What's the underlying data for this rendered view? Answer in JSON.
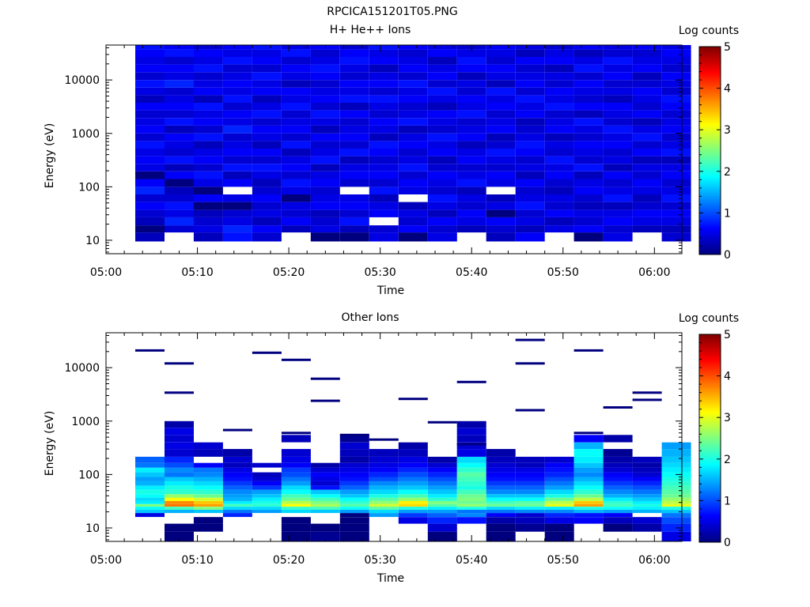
{
  "figure_title": "RPCICA151201T05.PNG",
  "colormap": [
    "#00007f",
    "#0000ff",
    "#007fff",
    "#00ffff",
    "#7fff7f",
    "#ffff00",
    "#ff7f00",
    "#ff0000",
    "#7f0000"
  ],
  "chart_data": [
    {
      "type": "heatmap",
      "title": "H+ He++ Ions",
      "xlabel": "Time",
      "ylabel": "Energy (eV)",
      "x_ticks": [
        "05:00",
        "05:10",
        "05:20",
        "05:30",
        "05:40",
        "05:50",
        "06:00"
      ],
      "x_range_minutes": [
        0,
        63
      ],
      "y_ticks": [
        "10",
        "100",
        "1000",
        "10000"
      ],
      "y_scale": "log",
      "y_range": [
        5.6,
        45000
      ],
      "colorbar": {
        "label": "Log counts",
        "ticks": [
          "0",
          "1",
          "2",
          "3",
          "4",
          "5"
        ],
        "range": [
          0,
          5
        ]
      },
      "time_bins_minutes": [
        3.2,
        6.4,
        9.6,
        12.8,
        16.0,
        19.2,
        22.4,
        25.6,
        28.8,
        32.0,
        35.2,
        38.4,
        41.6,
        44.8,
        48.0,
        51.2,
        54.4,
        57.6,
        60.8
      ],
      "energy_edges_eV": [
        9.5,
        14,
        19,
        27,
        37,
        52,
        72,
        100,
        140,
        195,
        270,
        375,
        520,
        720,
        1000,
        1400,
        1950,
        2700,
        3750,
        5200,
        7200,
        10000,
        14000,
        19500,
        27000,
        37500,
        45000
      ],
      "log_counts": [
        [
          0.3,
          0,
          0.3,
          0.4,
          0.6,
          0.4,
          0.8,
          0.6,
          0,
          0.5,
          0.6,
          0.5,
          0.7,
          0.4,
          0.6,
          0.5,
          0.4,
          0.6,
          0.3,
          0.5,
          0.7,
          0.4,
          0.6,
          0.5,
          0.6,
          0.7
        ],
        [
          null,
          0.4,
          0.8,
          0.5,
          0.7,
          0.4,
          0.3,
          0,
          0.6,
          0.3,
          0.7,
          0.4,
          0.5,
          0.6,
          0.3,
          0.7,
          0.4,
          0.6,
          0.5,
          0.4,
          0.8,
          0.5,
          0.6,
          0.4,
          0.7,
          0.6
        ],
        [
          0.3,
          0.5,
          0.4,
          0.3,
          0,
          0.6,
          0,
          0.5,
          0.7,
          0.4,
          0.6,
          0.5,
          0.3,
          0.7,
          0.4,
          0.6,
          0.5,
          0.7,
          0.3,
          0.6,
          0.5,
          0.4,
          0.7,
          0.5,
          0.6,
          0.4
        ],
        [
          0.7,
          0.8,
          0.5,
          0.4,
          0,
          0.5,
          null,
          0.6,
          0.3,
          0.7,
          0.4,
          0.6,
          0.5,
          0.4,
          0.8,
          0.5,
          0.6,
          0.4,
          0.7,
          0.5,
          0.6,
          0.5,
          0.4,
          0.7,
          0.5,
          0.6
        ],
        [
          0.4,
          0.6,
          0.3,
          0.5,
          0.4,
          0.6,
          0.4,
          0.3,
          0.5,
          0.7,
          0.4,
          0.6,
          0.3,
          0.5,
          0.6,
          0.4,
          0.7,
          0.5,
          0.3,
          0.6,
          0.5,
          0.7,
          0.4,
          0.6,
          0.5,
          0.7
        ],
        [
          null,
          0.3,
          0.6,
          0.4,
          0.5,
          0,
          0.5,
          0.7,
          0.4,
          0.6,
          0.5,
          0.3,
          0.7,
          0.4,
          0.6,
          0.5,
          0.4,
          0.7,
          0.5,
          0.6,
          0.3,
          0.5,
          0.6,
          0.4,
          0.7,
          0.5
        ],
        [
          0,
          0.5,
          0.4,
          0.3,
          0.6,
          0.5,
          0.4,
          0.6,
          0.5,
          0.3,
          0.7,
          0.5,
          0.4,
          0.6,
          0.3,
          0.5,
          0.7,
          0.4,
          0.6,
          0.5,
          0.4,
          0.6,
          0.7,
          0.5,
          0.4,
          0.6
        ],
        [
          0,
          0.3,
          0.7,
          0.4,
          0.6,
          0.5,
          null,
          0.4,
          0.6,
          0.5,
          0.3,
          0.7,
          0.4,
          0.6,
          0.5,
          0.4,
          0.6,
          0.3,
          0.7,
          0.5,
          0.6,
          0.4,
          0.5,
          0.7,
          0.6,
          0.4
        ],
        [
          0.5,
          0.4,
          null,
          0.6,
          0.5,
          0.3,
          0.7,
          0.4,
          0.6,
          0.5,
          0.4,
          0.6,
          0.7,
          0.3,
          0.5,
          0.6,
          0.4,
          0.5,
          0.7,
          0.4,
          0.6,
          0.5,
          0.3,
          0.6,
          0.5,
          0.7
        ],
        [
          0,
          0.6,
          0.4,
          0.5,
          0.3,
          null,
          0.5,
          0.6,
          0.4,
          0.7,
          0.5,
          0.4,
          0.6,
          0.5,
          0.3,
          0.7,
          0.5,
          0.4,
          0.6,
          0.5,
          0.7,
          0.4,
          0.6,
          0.5,
          0.4,
          0.6
        ],
        [
          0.5,
          0.4,
          0.6,
          0.3,
          0.5,
          0.7,
          0.4,
          0.5,
          0.6,
          0.4,
          0.3,
          0.6,
          0.5,
          0.7,
          0.4,
          0.5,
          0.6,
          0.3,
          0.5,
          0.7,
          0.4,
          0.6,
          0.5,
          0.3,
          0.6,
          0.5
        ],
        [
          null,
          0.3,
          0.5,
          0.6,
          0.4,
          0.5,
          0.3,
          0.7,
          0.5,
          0.4,
          0.6,
          0.5,
          0.3,
          0.6,
          0.5,
          0.4,
          0.7,
          0.5,
          0.6,
          0.4,
          0.5,
          0.3,
          0.6,
          0.7,
          0.5,
          0.4
        ],
        [
          0.3,
          0.4,
          0.6,
          0,
          0.5,
          0.3,
          null,
          0.5,
          0.6,
          0.4,
          0.5,
          0.7,
          0.4,
          0.3,
          0.6,
          0.5,
          0.4,
          0.6,
          0.5,
          0.7,
          0.3,
          0.5,
          0.6,
          0.4,
          0.5,
          0.6
        ],
        [
          0.6,
          0.3,
          0.5,
          0.4,
          0.7,
          0.5,
          0.4,
          0.6,
          0.3,
          0.5,
          0.4,
          0.6,
          0.7,
          0.5,
          0.4,
          0.3,
          0.6,
          0.5,
          0.7,
          0.4,
          0.6,
          0.5,
          0.4,
          0.6,
          0.3,
          0.5
        ],
        [
          null,
          0.5,
          0.3,
          0.6,
          0.4,
          0.5,
          0.3,
          0.4,
          0.6,
          0.5,
          0.7,
          0.4,
          0.5,
          0.3,
          0.6,
          0.5,
          0.4,
          0.7,
          0.5,
          0.6,
          0.4,
          0.5,
          0.3,
          0.6,
          0.5,
          0.4
        ],
        [
          0,
          0.6,
          0.4,
          0.5,
          0.3,
          0.4,
          0.6,
          0.5,
          0.3,
          0.7,
          0.4,
          0.5,
          0.6,
          0.4,
          0.5,
          0.7,
          0.3,
          0.6,
          0.4,
          0.5,
          0.6,
          0.4,
          0.7,
          0.5,
          0.3,
          0.6
        ],
        [
          0.5,
          0.4,
          0.6,
          0.5,
          0.3,
          0.7,
          0.5,
          0.4,
          0.6,
          0.3,
          0.5,
          0.4,
          0.6,
          0.5,
          0.7,
          0.4,
          0.5,
          0.6,
          0.3,
          0.5,
          0.4,
          0.6,
          0.5,
          0.7,
          0.4,
          0.5
        ],
        [
          null,
          0.3,
          0.5,
          0.6,
          0.4,
          0.3,
          0.5,
          0.6,
          0.4,
          0.5,
          0.3,
          0.6,
          0.4,
          0.7,
          0.5,
          0.3,
          0.6,
          0.4,
          0.5,
          0.6,
          0.4,
          0.3,
          0.6,
          0.5,
          0.4,
          0.6
        ],
        [
          0.4,
          0.3,
          0.5,
          0.6,
          0.4,
          0.7,
          0.5,
          0.4,
          0.6,
          0.5,
          0.3,
          0.7,
          0.5,
          0.4,
          0.6,
          0.5,
          0.4,
          0.6,
          0.7,
          0.4,
          0.5,
          0.6,
          0.4,
          0.5,
          0.6,
          0.5
        ]
      ]
    },
    {
      "type": "heatmap",
      "title": "Other Ions",
      "xlabel": "Time",
      "ylabel": "Energy (eV)",
      "x_ticks": [
        "05:00",
        "05:10",
        "05:20",
        "05:30",
        "05:40",
        "05:50",
        "06:00"
      ],
      "x_range_minutes": [
        0,
        63
      ],
      "y_ticks": [
        "10",
        "100",
        "1000",
        "10000"
      ],
      "y_scale": "log",
      "y_range": [
        5.6,
        45000
      ],
      "colorbar": {
        "label": "Log counts",
        "ticks": [
          "0",
          "1",
          "2",
          "3",
          "4",
          "5"
        ],
        "range": [
          0,
          5
        ]
      },
      "time_bins_minutes": [
        3.2,
        6.4,
        9.6,
        12.8,
        16.0,
        19.2,
        22.4,
        25.6,
        28.8,
        32.0,
        35.2,
        38.4,
        41.6,
        44.8,
        48.0,
        51.2,
        54.4,
        57.6,
        60.8
      ],
      "energy_edges_eV": [
        5.6,
        8.5,
        12,
        16,
        19,
        22,
        25,
        28,
        32,
        37,
        43,
        52,
        62,
        75,
        90,
        110,
        135,
        165,
        215,
        300,
        400,
        550,
        750,
        1000
      ],
      "log_counts": [
        [
          null,
          null,
          null,
          0.5,
          1.6,
          1.9,
          2.5,
          1.8,
          1.7,
          1.9,
          2.0,
          1.8,
          1.5,
          1.4,
          1.6,
          1.8,
          1.2,
          1.1,
          null,
          null,
          null,
          null,
          null
        ],
        [
          0,
          0,
          null,
          null,
          1.5,
          2.2,
          3.8,
          3.7,
          3.1,
          2.6,
          2.1,
          2.0,
          1.8,
          1.6,
          1.2,
          1.3,
          1.0,
          0.8,
          0.4,
          0.5,
          0.4,
          0.5,
          0.2
        ],
        [
          null,
          0,
          0,
          null,
          1.6,
          2.5,
          3.6,
          3.4,
          2.9,
          2.4,
          2.1,
          1.9,
          1.7,
          1.5,
          1.3,
          1.2,
          0.6,
          null,
          0.3,
          0.4,
          null,
          null,
          null
        ],
        [
          null,
          null,
          null,
          0.8,
          1.2,
          1.7,
          2.2,
          1.8,
          1.5,
          1.4,
          1.3,
          1.1,
          0.9,
          0.7,
          0.6,
          0.5,
          0.3,
          0.4,
          0.2,
          null,
          null,
          null,
          null
        ],
        [
          null,
          null,
          null,
          null,
          1.4,
          1.7,
          2.1,
          2.0,
          1.8,
          1.6,
          1.4,
          0.9,
          0.6,
          0.4,
          0.3,
          null,
          0.4,
          null,
          null,
          null,
          null,
          null,
          null
        ],
        [
          0,
          0,
          0,
          null,
          1.7,
          2.1,
          3.1,
          2.8,
          2.4,
          2.2,
          1.9,
          1.7,
          1.4,
          1.2,
          1.0,
          0.9,
          0.6,
          0.5,
          0.4,
          null,
          0.3,
          null,
          null
        ],
        [
          0.1,
          0,
          null,
          null,
          1.6,
          2.2,
          2.7,
          2.5,
          2.2,
          1.9,
          1.6,
          0.7,
          0.4,
          0.5,
          0.6,
          0.4,
          0.2,
          null,
          null,
          null,
          null,
          null,
          null
        ],
        [
          0,
          0,
          0,
          0,
          1.4,
          1.9,
          2.3,
          2.1,
          1.9,
          1.6,
          1.4,
          1.1,
          0.9,
          0.7,
          0.6,
          0.5,
          0.4,
          0.2,
          0.3,
          0.4,
          0.1,
          null,
          null
        ],
        [
          null,
          null,
          null,
          1.4,
          1.7,
          2.3,
          2.9,
          2.6,
          2.3,
          2.0,
          1.7,
          1.5,
          1.3,
          1.0,
          0.8,
          0.6,
          0.5,
          0.4,
          0.3,
          null,
          null,
          null,
          null
        ],
        [
          null,
          null,
          0.5,
          0.9,
          1.4,
          2.0,
          3.3,
          3.2,
          2.6,
          2.2,
          1.9,
          1.6,
          1.4,
          1.2,
          1.0,
          0.8,
          0.6,
          0.5,
          0.3,
          0.2,
          null,
          null,
          null
        ],
        [
          0,
          0.4,
          0.8,
          1.1,
          1.4,
          1.8,
          2.3,
          2.5,
          2.1,
          1.8,
          1.6,
          1.4,
          1.2,
          1.0,
          0.8,
          0.6,
          0.4,
          0.2,
          null,
          null,
          null,
          null,
          null
        ],
        [
          null,
          null,
          0.7,
          1.3,
          1.2,
          2.0,
          2.6,
          2.4,
          2.5,
          2.4,
          2.2,
          2.0,
          2.1,
          2.2,
          2.3,
          2.1,
          1.9,
          1.7,
          0.5,
          0.4,
          0.3,
          0.4,
          0.2
        ],
        [
          0,
          0,
          0.2,
          0.6,
          1.2,
          1.7,
          2.4,
          2.2,
          1.9,
          1.6,
          1.3,
          1.1,
          0.9,
          0.7,
          0.6,
          0.5,
          0.4,
          0.3,
          0.2,
          null,
          null,
          null,
          null
        ],
        [
          null,
          0.1,
          0.3,
          0.4,
          1.3,
          1.8,
          2.4,
          2.3,
          1.9,
          1.6,
          1.3,
          1.1,
          0.9,
          0.7,
          0.6,
          0.5,
          0.3,
          0.3,
          null,
          null,
          null,
          null,
          null
        ],
        [
          0,
          0,
          0.5,
          0.8,
          1.3,
          1.8,
          3.0,
          2.8,
          2.4,
          2.0,
          1.7,
          1.4,
          1.2,
          1.0,
          0.8,
          0.7,
          0.6,
          0.4,
          null,
          null,
          null,
          null,
          null
        ],
        [
          null,
          null,
          0.6,
          0.7,
          1.5,
          2.0,
          3.6,
          3.4,
          2.8,
          2.4,
          2.1,
          1.9,
          1.7,
          1.5,
          1.3,
          1.4,
          1.6,
          1.8,
          1.9,
          1.5,
          0.6,
          null,
          null
        ],
        [
          null,
          0,
          0.3,
          0.6,
          1.4,
          1.9,
          2.2,
          2.1,
          1.8,
          1.5,
          1.3,
          1.1,
          0.9,
          0.7,
          0.6,
          0.4,
          0.3,
          0.2,
          0.1,
          null,
          0.2,
          null,
          null
        ],
        [
          null,
          0.2,
          0.4,
          null,
          1.5,
          1.8,
          2.0,
          1.8,
          1.6,
          1.4,
          1.2,
          1.0,
          0.8,
          0.6,
          0.4,
          0.3,
          0.2,
          0.3,
          null,
          null,
          null,
          null,
          null
        ],
        [
          0.5,
          0.8,
          1.0,
          1.2,
          1.6,
          2.0,
          3.0,
          2.8,
          2.6,
          2.4,
          2.3,
          2.2,
          2.1,
          2.0,
          1.9,
          1.8,
          1.7,
          1.6,
          1.5,
          1.4,
          null,
          null,
          null
        ]
      ],
      "sparse_high_energy_lines": [
        {
          "t": 3.2,
          "eV": 21000
        },
        {
          "t": 6.4,
          "eV": 12000
        },
        {
          "t": 6.4,
          "eV": 3400
        },
        {
          "t": 12.8,
          "eV": 680
        },
        {
          "t": 16.0,
          "eV": 19000
        },
        {
          "t": 19.2,
          "eV": 14000
        },
        {
          "t": 19.2,
          "eV": 600
        },
        {
          "t": 22.4,
          "eV": 6200
        },
        {
          "t": 22.4,
          "eV": 2400
        },
        {
          "t": 25.6,
          "eV": 550
        },
        {
          "t": 28.8,
          "eV": 450
        },
        {
          "t": 32.0,
          "eV": 2600
        },
        {
          "t": 35.2,
          "eV": 950
        },
        {
          "t": 38.4,
          "eV": 5400
        },
        {
          "t": 38.4,
          "eV": 370
        },
        {
          "t": 44.8,
          "eV": 33000
        },
        {
          "t": 44.8,
          "eV": 12000
        },
        {
          "t": 44.8,
          "eV": 1600
        },
        {
          "t": 51.2,
          "eV": 21000
        },
        {
          "t": 51.2,
          "eV": 600
        },
        {
          "t": 54.4,
          "eV": 1800
        },
        {
          "t": 57.6,
          "eV": 3400
        },
        {
          "t": 57.6,
          "eV": 2500
        }
      ]
    }
  ]
}
